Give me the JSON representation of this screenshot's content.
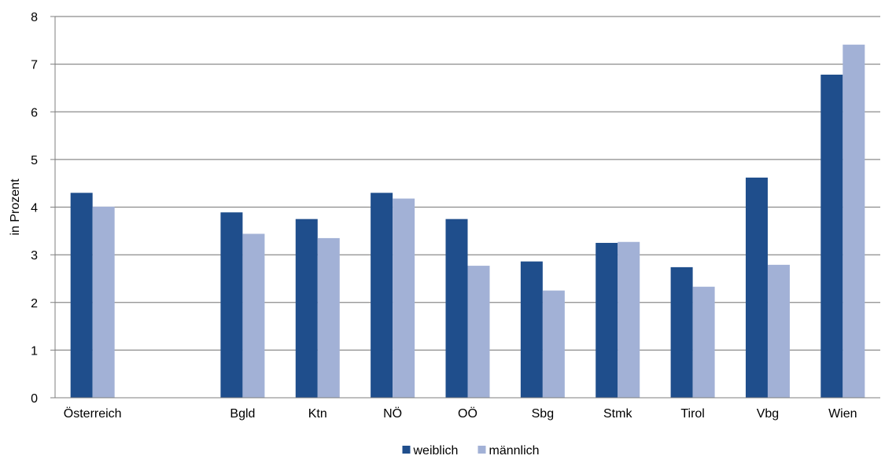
{
  "chart_data": {
    "type": "bar",
    "title": "",
    "xlabel": "",
    "ylabel": "in Prozent",
    "ylim": [
      0,
      8
    ],
    "yticks": [
      0,
      1,
      2,
      3,
      4,
      5,
      6,
      7,
      8
    ],
    "grid": true,
    "legend": "bottom",
    "categories": [
      "Österreich",
      "",
      "Bgld",
      "Ktn",
      "NÖ",
      "OÖ",
      "Sbg",
      "Stmk",
      "Tirol",
      "Vbg",
      "Wien"
    ],
    "series": [
      {
        "name": "weiblich",
        "color": "#1f4e8c",
        "values": [
          4.3,
          null,
          3.89,
          3.75,
          4.3,
          3.75,
          2.86,
          3.25,
          2.74,
          4.62,
          6.78
        ]
      },
      {
        "name": "männlich",
        "color": "#a2b1d6",
        "values": [
          4.01,
          null,
          3.44,
          3.35,
          4.18,
          2.77,
          2.25,
          3.27,
          2.33,
          2.79,
          7.41
        ]
      }
    ]
  }
}
